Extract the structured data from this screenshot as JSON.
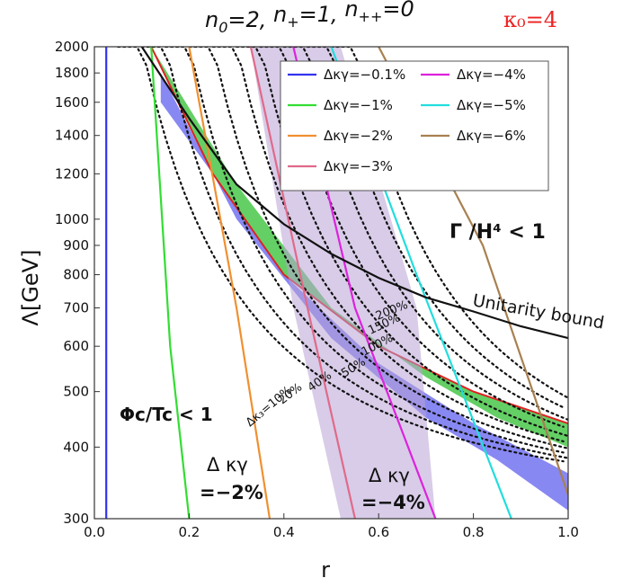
{
  "chart_data": {
    "type": "line",
    "title_parts": [
      "n",
      "0",
      "=2, ",
      "n",
      "+",
      "=1, ",
      "n",
      "++",
      "=0"
    ],
    "kappa_label": "κ₀=4",
    "xlabel": "r",
    "ylabel": "Λ[GeV]",
    "xlim": [
      0.0,
      1.0
    ],
    "ylim": [
      300,
      2000
    ],
    "yscale": "log",
    "x_ticks": [
      "0.0",
      "0.2",
      "0.4",
      "0.6",
      "0.8",
      "1.0"
    ],
    "y_ticks": [
      300,
      400,
      500,
      600,
      700,
      800,
      900,
      1000,
      1200,
      1400,
      1600,
      1800,
      2000
    ],
    "legend_position": "top-right",
    "series": [
      {
        "name": "Δκγ=−0.1%",
        "color": "#3333ee",
        "points": [
          [
            0.025,
            300
          ],
          [
            0.025,
            2000
          ]
        ]
      },
      {
        "name": "Δκγ=−1%",
        "color": "#33dd33",
        "points": [
          [
            0.2,
            300
          ],
          [
            0.16,
            600
          ],
          [
            0.12,
            2000
          ]
        ]
      },
      {
        "name": "Δκγ=−2%",
        "color": "#f09030",
        "points": [
          [
            0.37,
            300
          ],
          [
            0.3,
            700
          ],
          [
            0.2,
            2000
          ]
        ]
      },
      {
        "name": "Δκγ=−3%",
        "color": "#e06a8a",
        "points": [
          [
            0.55,
            300
          ],
          [
            0.45,
            700
          ],
          [
            0.33,
            2000
          ]
        ]
      },
      {
        "name": "Δκγ=−4%",
        "color": "#dd22dd",
        "points": [
          [
            0.72,
            300
          ],
          [
            0.55,
            700
          ],
          [
            0.42,
            2000
          ]
        ]
      },
      {
        "name": "Δκγ=−5%",
        "color": "#22dddd",
        "points": [
          [
            0.88,
            300
          ],
          [
            0.68,
            800
          ],
          [
            0.5,
            2000
          ]
        ]
      },
      {
        "name": "Δκγ=−6%",
        "color": "#a88050",
        "points": [
          [
            1.0,
            330
          ],
          [
            0.82,
            900
          ],
          [
            0.6,
            2000
          ]
        ]
      }
    ],
    "unitarity_bound": {
      "label": "Unitarity bound",
      "points": [
        [
          0.1,
          2000
        ],
        [
          0.2,
          1500
        ],
        [
          0.3,
          1150
        ],
        [
          0.4,
          980
        ],
        [
          0.5,
          870
        ],
        [
          0.6,
          790
        ],
        [
          0.7,
          730
        ],
        [
          0.8,
          690
        ],
        [
          0.9,
          650
        ],
        [
          1.0,
          620
        ]
      ]
    },
    "dotted_contours": {
      "labels": [
        "Δκ₃=10%",
        "20%",
        "40%",
        "50%",
        "100%",
        "150%",
        "200%"
      ],
      "offsets": [
        0.0,
        0.05,
        0.1,
        0.15,
        0.2,
        0.25,
        0.3,
        0.35,
        0.4,
        0.45
      ]
    },
    "bands": [
      {
        "name": "green",
        "color": "#22bb22",
        "upper": [
          [
            0.12,
            2000
          ],
          [
            0.3,
            1150
          ],
          [
            0.5,
            700
          ],
          [
            0.7,
            530
          ],
          [
            0.85,
            450
          ],
          [
            1.0,
            400
          ]
        ],
        "lower": [
          [
            0.12,
            2000
          ],
          [
            0.25,
            1200
          ],
          [
            0.4,
            800
          ],
          [
            0.6,
            600
          ],
          [
            0.8,
            500
          ],
          [
            1.0,
            440
          ]
        ]
      },
      {
        "name": "blue",
        "color": "#5555ee",
        "upper": [
          [
            0.14,
            1800
          ],
          [
            0.3,
            1000
          ],
          [
            0.5,
            620
          ],
          [
            0.7,
            450
          ],
          [
            0.85,
            380
          ],
          [
            1.0,
            310
          ]
        ],
        "lower": [
          [
            0.14,
            1600
          ],
          [
            0.25,
            1200
          ],
          [
            0.4,
            800
          ],
          [
            0.6,
            560
          ],
          [
            0.8,
            440
          ],
          [
            1.0,
            360
          ]
        ]
      }
    ],
    "annotations": {
      "gamma_region": "Γ /H⁴ < 1",
      "phi_region": "Φc/Tc < 1",
      "dk2_line1": "Δ κγ",
      "dk2_line2": "=−2%",
      "dk4_line1": "Δ κγ",
      "dk4_line2": "=−4%"
    },
    "colors": {
      "green_band": "#22bb22",
      "blue_band": "#5555ee",
      "lilac_band": "#b8a3d6",
      "red_edge": "#dd2222"
    }
  }
}
